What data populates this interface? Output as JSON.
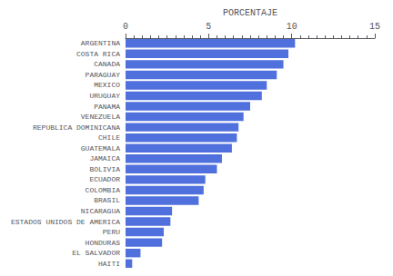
{
  "chart_data": {
    "type": "bar",
    "orientation": "horizontal",
    "xlabel": "PORCENTAJE",
    "categories": [
      "ARGENTINA",
      "COSTA RICA",
      "CANADA",
      "PARAGUAY",
      "MEXICO",
      "URUGUAY",
      "PANAMA",
      "VENEZUELA",
      "REPUBLICA DOMINICANA",
      "CHILE",
      "GUATEMALA",
      "JAMAICA",
      "BOLIVIA",
      "ECUADOR",
      "COLOMBIA",
      "BRASIL",
      "NICARAGUA",
      "ESTADOS UNIDOS DE AMERICA",
      "PERU",
      "HONDURAS",
      "EL SALVADOR",
      "HAITI"
    ],
    "values": [
      10.2,
      9.8,
      9.5,
      9.1,
      8.5,
      8.2,
      7.5,
      7.1,
      6.8,
      6.7,
      6.4,
      5.8,
      5.5,
      4.8,
      4.7,
      4.4,
      2.8,
      2.7,
      2.3,
      2.2,
      0.9,
      0.4
    ],
    "xlim": [
      0,
      15
    ],
    "xticks": [
      0,
      5,
      10,
      15
    ],
    "grid": false
  }
}
